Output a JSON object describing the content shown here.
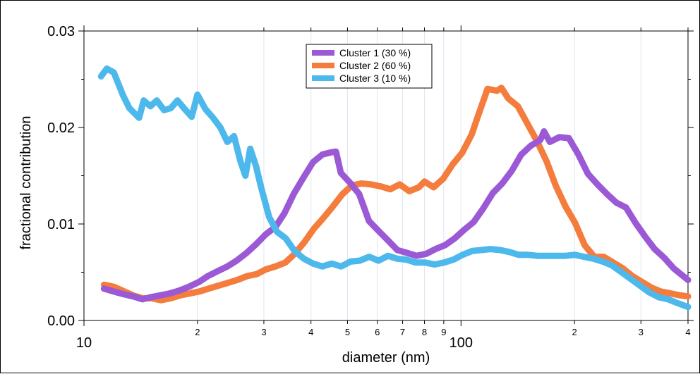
{
  "chart_data": {
    "type": "line",
    "x_scale": "log",
    "xlabel": "diameter (nm)",
    "ylabel": "fractional contribution",
    "xlim": [
      10,
      400
    ],
    "ylim": [
      0,
      0.03
    ],
    "x_major_ticks": [
      {
        "value": 10,
        "label": "10"
      },
      {
        "value": 100,
        "label": "100"
      }
    ],
    "x_minor_ticks": [
      {
        "value": 20,
        "label": "2"
      },
      {
        "value": 30,
        "label": "3"
      },
      {
        "value": 40,
        "label": "4"
      },
      {
        "value": 50,
        "label": "5"
      },
      {
        "value": 60,
        "label": "6"
      },
      {
        "value": 70,
        "label": "7"
      },
      {
        "value": 80,
        "label": "8"
      },
      {
        "value": 90,
        "label": "9"
      },
      {
        "value": 200,
        "label": "2"
      },
      {
        "value": 300,
        "label": "3"
      },
      {
        "value": 400,
        "label": "4"
      }
    ],
    "y_ticks": [
      {
        "value": 0.0,
        "label": "0.00"
      },
      {
        "value": 0.01,
        "label": "0.01"
      },
      {
        "value": 0.02,
        "label": "0.02"
      },
      {
        "value": 0.03,
        "label": "0.03"
      }
    ],
    "grid": "vertical",
    "legend_position": "top-center",
    "series": [
      {
        "name": "Cluster 1 (30 %)",
        "color": "#9b59d6",
        "x": [
          11.3,
          12.0,
          12.8,
          13.5,
          14.3,
          15.0,
          15.9,
          16.9,
          17.9,
          19.0,
          20.2,
          21.3,
          22.6,
          24.0,
          25.4,
          27.0,
          28.6,
          30.3,
          32.2,
          34.0,
          36.0,
          38.2,
          40.5,
          42.9,
          45.0,
          46.6,
          48.0,
          50.7,
          53.7,
          57.0,
          60.4,
          64.0,
          67.8,
          71.9,
          76.2,
          80.7,
          85.6,
          90.7,
          96.2,
          102.0,
          108.0,
          114.5,
          121.4,
          128.6,
          136.3,
          144.5,
          153.1,
          162.3,
          166.0,
          172.0,
          182.3,
          193.2,
          204.8,
          217.1,
          230.1,
          243.9,
          258.5,
          274.0,
          290.4,
          307.8,
          326.3,
          345.8,
          366.5,
          388.5,
          400.0
        ],
        "y": [
          0.0033,
          0.003,
          0.0027,
          0.0025,
          0.0022,
          0.0024,
          0.0026,
          0.0028,
          0.0031,
          0.0035,
          0.004,
          0.0046,
          0.0051,
          0.0056,
          0.0062,
          0.007,
          0.0079,
          0.0089,
          0.0097,
          0.0111,
          0.0131,
          0.0148,
          0.0164,
          0.0172,
          0.0174,
          0.0175,
          0.0153,
          0.0143,
          0.0131,
          0.0103,
          0.0093,
          0.0083,
          0.0073,
          0.007,
          0.0067,
          0.0069,
          0.0074,
          0.0078,
          0.0085,
          0.0094,
          0.0102,
          0.0116,
          0.0132,
          0.0142,
          0.0155,
          0.0172,
          0.0181,
          0.0187,
          0.0196,
          0.0185,
          0.019,
          0.0189,
          0.0172,
          0.0152,
          0.0141,
          0.0131,
          0.0122,
          0.0117,
          0.0101,
          0.0087,
          0.0074,
          0.0065,
          0.0054,
          0.0046,
          0.0042
        ]
      },
      {
        "name": "Cluster 2 (60 %)",
        "color": "#f47c3c",
        "x": [
          11.3,
          12.0,
          12.8,
          13.5,
          14.3,
          15.1,
          16.0,
          17.0,
          18.0,
          19.1,
          20.2,
          21.4,
          22.7,
          24.1,
          25.5,
          27.1,
          28.7,
          30.4,
          32.2,
          34.2,
          36.2,
          38.4,
          40.7,
          43.1,
          45.7,
          48.5,
          51.4,
          54.5,
          57.7,
          61.2,
          64.9,
          68.8,
          72.9,
          77.3,
          80.0,
          84.6,
          89.7,
          95.1,
          100.8,
          106.8,
          111.2,
          117.6,
          124.6,
          128.0,
          133.5,
          141.5,
          150.0,
          159.0,
          168.6,
          178.7,
          189.4,
          200.8,
          212.8,
          225.6,
          239.1,
          253.5,
          268.7,
          284.8,
          301.9,
          320.0,
          339.2,
          359.6,
          381.2,
          400.0
        ],
        "y": [
          0.0037,
          0.0035,
          0.003,
          0.0026,
          0.0023,
          0.0023,
          0.0021,
          0.0023,
          0.0026,
          0.0028,
          0.003,
          0.0033,
          0.0036,
          0.0039,
          0.0042,
          0.0046,
          0.0048,
          0.0053,
          0.0056,
          0.006,
          0.0069,
          0.0081,
          0.0095,
          0.0106,
          0.0118,
          0.0131,
          0.014,
          0.0142,
          0.0141,
          0.0139,
          0.0136,
          0.0141,
          0.0134,
          0.0138,
          0.0144,
          0.0138,
          0.0147,
          0.0162,
          0.0174,
          0.0193,
          0.0213,
          0.024,
          0.0238,
          0.0241,
          0.023,
          0.0222,
          0.0204,
          0.0186,
          0.0165,
          0.0139,
          0.0118,
          0.0101,
          0.0078,
          0.0066,
          0.0066,
          0.006,
          0.0054,
          0.0046,
          0.004,
          0.0034,
          0.003,
          0.0028,
          0.0026,
          0.0025
        ]
      },
      {
        "name": "Cluster 3 (10 %)",
        "color": "#4db8ec",
        "x": [
          11.1,
          11.5,
          12.0,
          12.7,
          13.2,
          14.0,
          14.4,
          15.0,
          15.6,
          16.3,
          17.0,
          17.7,
          18.6,
          19.3,
          20.0,
          21.0,
          22.0,
          23.0,
          24.0,
          25.0,
          26.0,
          26.8,
          27.6,
          28.6,
          29.5,
          31.0,
          32.5,
          34.3,
          36.2,
          38.3,
          40.5,
          42.9,
          45.4,
          48.1,
          50.9,
          53.9,
          57.1,
          60.4,
          64.0,
          67.7,
          71.7,
          75.9,
          80.4,
          85.1,
          90.1,
          95.4,
          101.0,
          106.9,
          113.2,
          119.8,
          126.9,
          134.3,
          142.2,
          150.6,
          159.4,
          168.8,
          178.7,
          189.2,
          200.3,
          212.0,
          224.5,
          237.7,
          251.6,
          266.4,
          282.1,
          298.6,
          316.2,
          334.8,
          354.4,
          375.2,
          400.0
        ],
        "y": [
          0.0253,
          0.0261,
          0.0257,
          0.0233,
          0.022,
          0.021,
          0.0228,
          0.0222,
          0.0228,
          0.0218,
          0.022,
          0.0228,
          0.0218,
          0.0211,
          0.0234,
          0.0219,
          0.021,
          0.02,
          0.0185,
          0.0191,
          0.0165,
          0.015,
          0.0178,
          0.016,
          0.0138,
          0.0107,
          0.0092,
          0.0085,
          0.0072,
          0.0064,
          0.0059,
          0.0056,
          0.0059,
          0.0056,
          0.0061,
          0.0062,
          0.0066,
          0.0062,
          0.0067,
          0.0064,
          0.0063,
          0.006,
          0.006,
          0.0058,
          0.006,
          0.0063,
          0.0068,
          0.0072,
          0.0073,
          0.0074,
          0.0073,
          0.0071,
          0.0068,
          0.0068,
          0.0067,
          0.0067,
          0.0067,
          0.0067,
          0.0068,
          0.0066,
          0.0064,
          0.0061,
          0.0057,
          0.005,
          0.0043,
          0.0036,
          0.0029,
          0.0024,
          0.0022,
          0.0018,
          0.0014
        ]
      }
    ]
  }
}
